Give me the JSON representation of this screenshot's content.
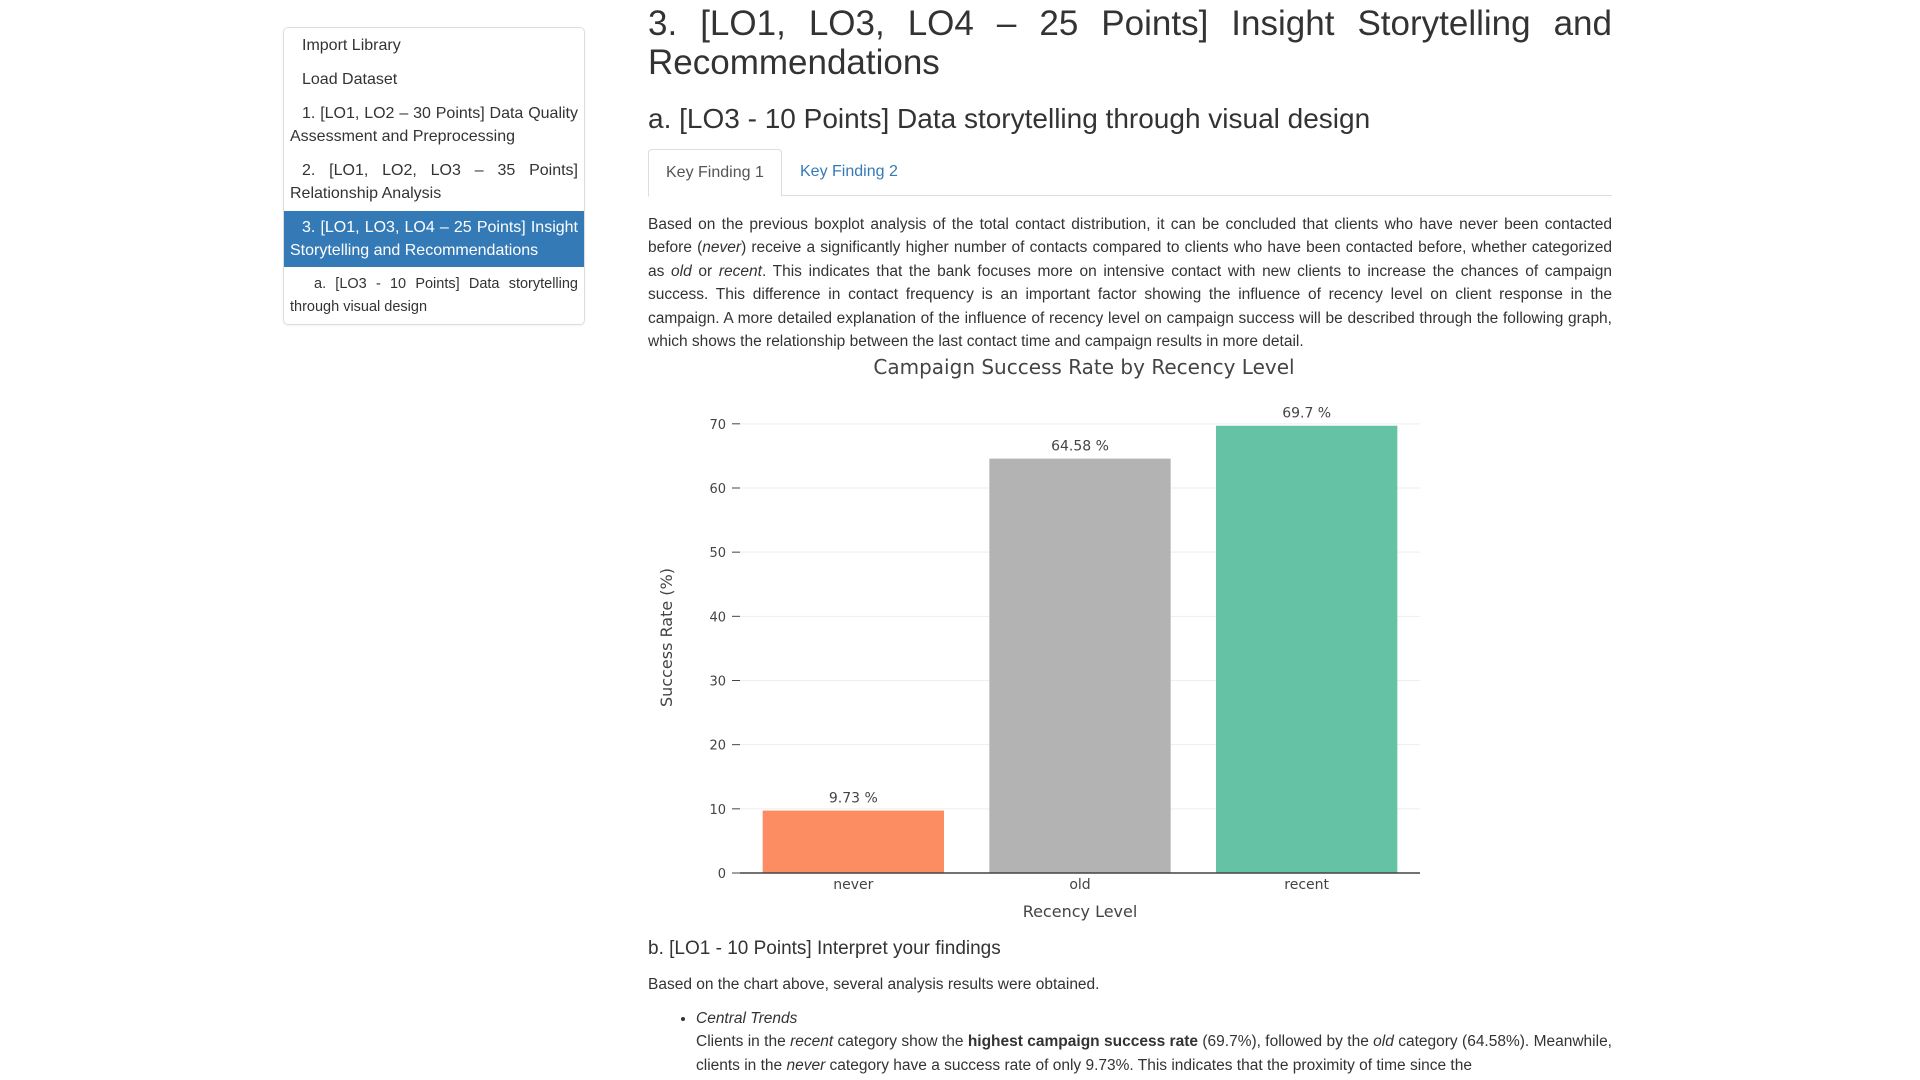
{
  "toc": {
    "items": [
      {
        "label": "Import Library",
        "active": false
      },
      {
        "label": "Load Dataset",
        "active": false
      },
      {
        "label": "1. [LO1, LO2 – 30 Points] Data Quality Assessment and Preprocessing",
        "active": false
      },
      {
        "label": "2. [LO1, LO2, LO3 – 35 Points] Relationship Analysis",
        "active": false
      },
      {
        "label": "3. [LO1, LO3, LO4 – 25 Points] Insight Storytelling and Recommendations",
        "active": true
      },
      {
        "label": "a. [LO3 - 10 Points] Data storytelling through visual design",
        "active": false
      }
    ]
  },
  "main": {
    "title": "3. [LO1, LO3, LO4 – 25 Points] Insight Storytelling and Recommendations",
    "section_a_title": "a. [LO3 - 10 Points] Data storytelling through visual design",
    "tabs": [
      {
        "label": "Key Finding 1",
        "active": true
      },
      {
        "label": "Key Finding 2",
        "active": false
      }
    ],
    "paragraph": {
      "p1": "Based on the previous boxplot analysis of the total contact distribution, it can be concluded that clients who have never been contacted before (",
      "e1": "never",
      "p2": ") receive a significantly higher number of contacts compared to clients who have been contacted before, whether categorized as ",
      "e2": "old",
      "p3": " or ",
      "e3": "recent",
      "p4": ". This indicates that the bank focuses more on intensive contact with new clients to increase the chances of campaign success. This difference in contact frequency is an important factor showing the influence of recency level on client response in the campaign. A more detailed explanation of the influence of recency level on campaign success will be described through the following graph, which shows the relationship between the last contact time and campaign results in more detail."
    },
    "section_b_title": "b. [LO1 - 10 Points] Interpret your findings",
    "section_b_intro": "Based on the chart above, several analysis results were obtained.",
    "finding": {
      "heading": "Central Trends",
      "t1": "Clients in the ",
      "e1": "recent",
      "t2": " category show the ",
      "b1": "highest campaign success rate",
      "t3": " (69.7%), followed by the ",
      "e2": "old",
      "t4": " category (64.58%). Meanwhile, clients in the ",
      "e3": "never",
      "t5": " category have a success rate of only 9.73%. This indicates that the proximity of time since the"
    }
  },
  "chart_data": {
    "type": "bar",
    "title": "Campaign Success Rate by Recency Level",
    "xlabel": "Recency Level",
    "ylabel": "Success Rate (%)",
    "categories": [
      "never",
      "old",
      "recent"
    ],
    "values": [
      9.73,
      64.58,
      69.7
    ],
    "data_labels": [
      "9.73 %",
      "64.58 %",
      "69.7 %"
    ],
    "colors": [
      "#fc8d62",
      "#b3b3b3",
      "#66c2a5"
    ],
    "yticks": [
      0,
      10,
      20,
      30,
      40,
      50,
      60,
      70
    ],
    "ylim": [
      0,
      73.4
    ],
    "grid": true
  }
}
